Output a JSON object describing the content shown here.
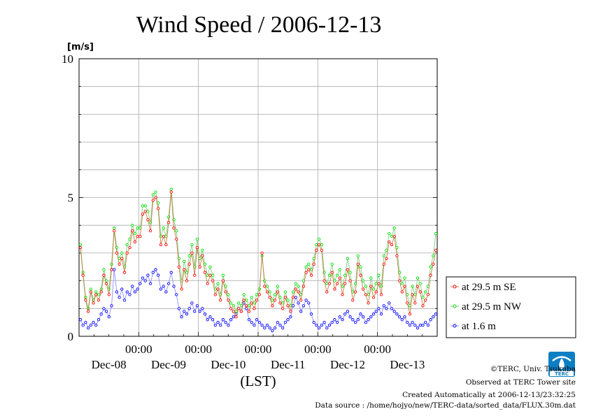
{
  "chart_data": {
    "type": "line",
    "title": "Wind Speed / 2006-12-13",
    "ylabel": "[m/s]",
    "xlabel": "(LST)",
    "ylim": [
      0,
      10
    ],
    "y_ticks": [
      "0",
      "5",
      "10"
    ],
    "x_time_labels": [
      "00:00",
      "00:00",
      "00:00",
      "00:00",
      "00:00"
    ],
    "x_date_labels": [
      "Dec-08",
      "Dec-09",
      "Dec-10",
      "Dec-11",
      "Dec-12",
      "Dec-13"
    ],
    "grid": true,
    "legend_placement": "right",
    "series": [
      {
        "name": "at 29.5 m SE",
        "color": "#ff0000",
        "line_color": "#c08040",
        "values": [
          3.2,
          2.2,
          1.3,
          0.9,
          1.6,
          1.2,
          1.5,
          1.3,
          1.6,
          2.2,
          1.9,
          1.5,
          2.4,
          3.8,
          3.0,
          2.6,
          2.8,
          2.3,
          3.0,
          3.2,
          3.8,
          3.4,
          3.6,
          3.6,
          4.4,
          4.5,
          4.2,
          3.8,
          4.9,
          5.0,
          4.6,
          3.3,
          3.6,
          3.3,
          4.1,
          5.2,
          3.9,
          3.5,
          2.5,
          1.7,
          2.4,
          2.0,
          2.6,
          3.0,
          2.2,
          3.2,
          2.5,
          2.9,
          2.3,
          1.9,
          2.2,
          2.0,
          1.5,
          1.7,
          1.3,
          2.0,
          1.6,
          1.3,
          1.0,
          0.9,
          0.7,
          1.0,
          0.9,
          1.3,
          1.1,
          0.9,
          1.2,
          1.0,
          1.3,
          1.5,
          3.0,
          1.8,
          1.6,
          1.4,
          1.1,
          1.3,
          1.6,
          1.2,
          1.0,
          1.4,
          1.1,
          0.9,
          1.4,
          1.7,
          1.6,
          1.3,
          1.8,
          2.3,
          2.4,
          2.2,
          2.6,
          3.1,
          3.3,
          3.1,
          2.0,
          1.6,
          1.9,
          2.3,
          1.7,
          1.9,
          2.1,
          1.5,
          1.9,
          2.4,
          2.0,
          1.3,
          1.6,
          2.6,
          2.2,
          1.7,
          1.5,
          1.2,
          1.8,
          1.4,
          1.6,
          1.9,
          1.5,
          2.6,
          2.8,
          3.4,
          3.3,
          3.6,
          2.9,
          2.0,
          1.6,
          1.8,
          1.2,
          0.8,
          1.5,
          1.2,
          1.8,
          1.6,
          1.1,
          1.3,
          1.5,
          2.2,
          2.6,
          3.1
        ]
      },
      {
        "name": "at 29.5 m NW",
        "color": "#00e000",
        "line_color": "#80d080",
        "values": [
          3.3,
          2.3,
          1.4,
          1.0,
          1.7,
          1.3,
          1.6,
          1.5,
          1.7,
          2.4,
          2.0,
          1.7,
          2.6,
          3.9,
          3.2,
          2.8,
          3.0,
          2.5,
          3.3,
          3.5,
          4.0,
          3.7,
          3.9,
          3.9,
          4.7,
          4.7,
          4.5,
          4.1,
          5.1,
          5.2,
          4.8,
          3.6,
          3.9,
          3.6,
          4.3,
          5.3,
          4.2,
          3.8,
          2.8,
          2.0,
          2.7,
          2.3,
          2.9,
          3.3,
          2.5,
          3.5,
          2.8,
          3.1,
          2.6,
          2.2,
          2.5,
          2.2,
          1.7,
          1.9,
          1.5,
          2.2,
          1.8,
          1.5,
          1.2,
          1.1,
          0.9,
          1.2,
          1.1,
          1.5,
          1.3,
          1.1,
          1.4,
          1.2,
          1.5,
          1.7,
          2.9,
          2.0,
          1.8,
          1.6,
          1.3,
          1.5,
          1.8,
          1.4,
          1.2,
          1.6,
          1.3,
          1.1,
          1.6,
          1.9,
          1.8,
          1.5,
          2.0,
          2.5,
          2.6,
          2.4,
          2.8,
          3.3,
          3.5,
          3.3,
          2.3,
          1.9,
          2.2,
          2.6,
          2.0,
          2.2,
          2.4,
          1.8,
          2.2,
          2.8,
          2.3,
          1.6,
          1.9,
          2.9,
          2.5,
          2.0,
          1.8,
          1.5,
          2.1,
          1.7,
          1.9,
          2.2,
          1.8,
          2.9,
          3.1,
          3.7,
          3.6,
          3.9,
          3.2,
          2.3,
          1.9,
          2.1,
          1.5,
          1.1,
          1.8,
          1.5,
          2.1,
          1.9,
          1.4,
          1.6,
          1.8,
          2.5,
          2.9,
          3.7
        ]
      },
      {
        "name": "at 1.6 m",
        "color": "#0000ff",
        "line_color": "#9090ff",
        "values": [
          0.6,
          0.4,
          0.5,
          0.3,
          0.4,
          0.5,
          0.4,
          0.6,
          0.8,
          1.0,
          0.9,
          0.7,
          1.1,
          2.4,
          1.6,
          1.4,
          1.7,
          1.3,
          1.6,
          1.5,
          1.8,
          1.6,
          1.7,
          1.9,
          2.1,
          2.0,
          2.2,
          1.9,
          2.3,
          2.4,
          2.2,
          1.7,
          1.8,
          1.6,
          1.9,
          2.3,
          1.8,
          1.5,
          1.0,
          0.7,
          0.9,
          0.8,
          1.0,
          1.2,
          0.9,
          1.1,
          0.9,
          1.0,
          0.8,
          0.6,
          0.7,
          0.6,
          0.4,
          0.5,
          0.4,
          0.6,
          0.5,
          0.4,
          0.6,
          0.7,
          0.8,
          1.0,
          0.9,
          1.2,
          1.0,
          0.6,
          0.5,
          0.4,
          0.6,
          0.5,
          0.4,
          0.3,
          0.4,
          0.3,
          0.2,
          0.3,
          0.5,
          0.4,
          0.3,
          0.5,
          0.6,
          0.7,
          1.1,
          1.4,
          1.2,
          0.9,
          1.1,
          1.3,
          1.2,
          0.8,
          0.5,
          0.4,
          0.3,
          0.4,
          0.5,
          0.3,
          0.4,
          0.5,
          0.6,
          0.5,
          0.7,
          0.6,
          0.8,
          0.9,
          0.7,
          0.6,
          0.5,
          0.6,
          0.8,
          0.7,
          0.5,
          0.6,
          0.7,
          0.8,
          0.9,
          1.0,
          0.8,
          1.1,
          1.0,
          1.2,
          1.0,
          0.9,
          0.8,
          0.7,
          0.6,
          0.7,
          0.5,
          0.4,
          0.5,
          0.4,
          0.3,
          0.4,
          0.4,
          0.5,
          0.4,
          0.6,
          0.7,
          0.8
        ]
      }
    ]
  },
  "footer": {
    "copyright": "©TERC, Univ. Tsukuba",
    "observed": "Observed at TERC Tower site",
    "created": "Created Automatically at 2006-12-13/23:32:25",
    "source": "Data source : /home/hojyo/new/TERC-data/sorted_data/FLUX.30m.dat"
  },
  "logo": {
    "text": "TERC",
    "icon": "terc-logo-icon",
    "color": "#0080c0"
  }
}
